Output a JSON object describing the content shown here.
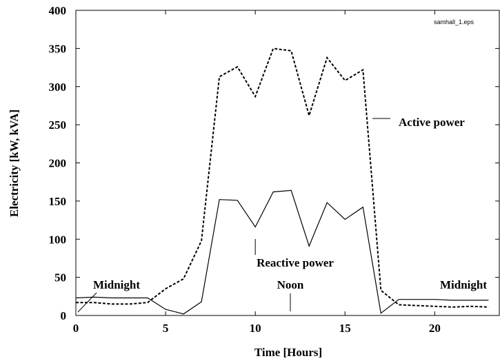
{
  "chart_data": {
    "type": "line",
    "x_label": "Time [Hours]",
    "y_label": "Electricity [kW, kVA]",
    "file_label": "samhall_1.eps",
    "x": [
      0,
      1,
      2,
      3,
      4,
      5,
      6,
      7,
      8,
      9,
      10,
      11,
      12,
      13,
      14,
      15,
      16,
      17,
      18,
      19,
      20,
      21,
      22,
      23
    ],
    "series": [
      {
        "name": "Active power",
        "color": "#000000",
        "dash": true,
        "values": [
          17,
          17,
          15,
          15,
          17,
          35,
          48,
          98,
          313,
          326,
          287,
          350,
          347,
          262,
          338,
          308,
          322,
          33,
          14,
          13,
          12,
          11,
          12,
          11
        ]
      },
      {
        "name": "Reactive power",
        "color": "#000000",
        "dash": false,
        "values": [
          23,
          24,
          23,
          23,
          23,
          8,
          2,
          18,
          152,
          151,
          116,
          162,
          164,
          91,
          148,
          126,
          142,
          3,
          21,
          21,
          21,
          20,
          20,
          20
        ]
      }
    ],
    "annotations": [
      {
        "text": "Midnight"
      },
      {
        "text": "Noon"
      },
      {
        "text": "Midnight"
      }
    ],
    "xlim": [
      0,
      23.6
    ],
    "xticks": [
      0,
      5,
      10,
      15,
      20
    ],
    "ylim": [
      0,
      400
    ],
    "yticks": [
      0,
      50,
      100,
      150,
      200,
      250,
      300,
      350,
      400
    ]
  }
}
